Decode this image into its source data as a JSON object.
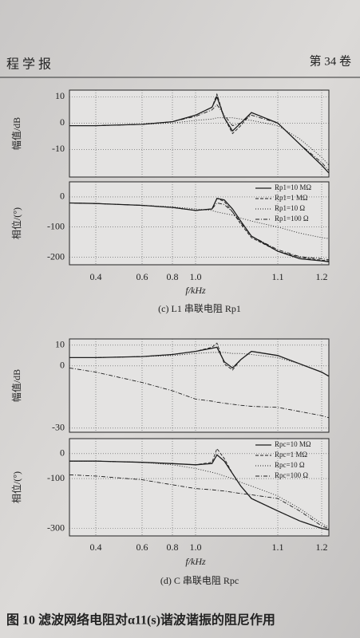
{
  "header": {
    "left": "程 学 报",
    "right": "第 34 卷"
  },
  "chart_data": [
    {
      "type": "line",
      "ylabel": "幅值/dB",
      "grid": true,
      "x": [
        0.32,
        0.4,
        0.6,
        0.8,
        1.0,
        1.02,
        1.026,
        1.035,
        1.045,
        1.055,
        1.068,
        1.1,
        1.15,
        1.2,
        1.22
      ],
      "xlim": [
        0.32,
        1.22
      ],
      "xticks": [
        0.4,
        0.6,
        0.8,
        {
          "value": 1,
          "label": "1.0"
        },
        1.1,
        1.2
      ],
      "ylim": [
        -20.5,
        12.5
      ],
      "yticks": [
        10,
        0,
        -10
      ],
      "series": [
        {
          "style": "solid",
          "color": "#1e1e1e",
          "values": [
            -1,
            -1,
            -0.5,
            0.5,
            3,
            6,
            10,
            2,
            -3,
            0,
            4,
            0,
            -8,
            -16,
            -19
          ]
        },
        {
          "style": "dashed",
          "color": "#1e1e1e",
          "values": [
            -1,
            -1,
            -0.5,
            0.5,
            3,
            6,
            11,
            2,
            -4,
            -1,
            4,
            0,
            -8,
            -16,
            -19
          ]
        },
        {
          "style": "dotted",
          "color": "#1e1e1e",
          "values": [
            -1,
            -1,
            -0.5,
            0,
            1,
            1.5,
            2,
            2,
            2,
            1.5,
            1,
            -1,
            -6,
            -13,
            -16
          ]
        },
        {
          "style": "dashdot",
          "color": "#1e1e1e",
          "values": [
            -1,
            -1,
            -0.5,
            0.5,
            2.5,
            5,
            7,
            3,
            -1,
            0,
            3,
            0,
            -8,
            -15,
            -18
          ]
        }
      ]
    },
    {
      "type": "line",
      "ylabel": "相位/(°)",
      "xlabel": "f/kHz",
      "grid": true,
      "legend": "upper right",
      "x": [
        0.32,
        0.4,
        0.6,
        0.8,
        1.0,
        1.02,
        1.026,
        1.035,
        1.045,
        1.055,
        1.068,
        1.1,
        1.15,
        1.2,
        1.22
      ],
      "xlim": [
        0.32,
        1.22
      ],
      "xticks": [
        0.4,
        0.6,
        0.8,
        {
          "value": 1,
          "label": "1.0"
        },
        1.1,
        1.2
      ],
      "ylim": [
        -225,
        50
      ],
      "yticks": [
        0,
        -100,
        -200
      ],
      "series": [
        {
          "name": "Rp1=10 MΩ",
          "style": "solid",
          "color": "#1e1e1e",
          "values": [
            -20,
            -22,
            -28,
            -35,
            -45,
            -40,
            -5,
            -10,
            -40,
            -80,
            -130,
            -180,
            -205,
            -212,
            -215
          ]
        },
        {
          "name": "Rp1=1 MΩ",
          "style": "dashed",
          "color": "#1e1e1e",
          "values": [
            -20,
            -22,
            -28,
            -35,
            -45,
            -40,
            -5,
            -15,
            -50,
            -90,
            -135,
            -180,
            -200,
            -210,
            -212
          ]
        },
        {
          "name": "Rp1=10 Ω",
          "style": "dotted",
          "color": "#1e1e1e",
          "values": [
            -20,
            -22,
            -28,
            -33,
            -40,
            -45,
            -50,
            -55,
            -60,
            -70,
            -80,
            -100,
            -120,
            -135,
            -138
          ]
        },
        {
          "name": "Rp1=100 Ω",
          "style": "dashdot",
          "color": "#1e1e1e",
          "values": [
            -20,
            -22,
            -28,
            -35,
            -45,
            -40,
            -20,
            -25,
            -50,
            -85,
            -130,
            -175,
            -198,
            -205,
            -208
          ]
        }
      ]
    },
    {
      "type": "line",
      "ylabel": "幅值/dB",
      "grid": true,
      "x": [
        0.32,
        0.4,
        0.6,
        0.8,
        1.0,
        1.02,
        1.026,
        1.035,
        1.045,
        1.055,
        1.068,
        1.1,
        1.15,
        1.2,
        1.22
      ],
      "xlim": [
        0.32,
        1.22
      ],
      "xticks": [
        0.4,
        0.6,
        0.8,
        {
          "value": 1,
          "label": "1.0"
        },
        1.1,
        1.2
      ],
      "ylim": [
        -32,
        13
      ],
      "yticks": [
        10,
        0,
        -30
      ],
      "series": [
        {
          "style": "solid",
          "color": "#1e1e1e",
          "values": [
            4,
            4,
            4.5,
            5.5,
            7,
            8.5,
            9,
            2,
            -1,
            3,
            7,
            5,
            1,
            -3,
            -5
          ]
        },
        {
          "style": "dashed",
          "color": "#1e1e1e",
          "values": [
            4,
            4,
            4.5,
            5.5,
            7,
            9,
            11,
            1,
            -2,
            3,
            7,
            5,
            1,
            -3,
            -5
          ]
        },
        {
          "style": "dotted",
          "color": "#1e1e1e",
          "values": [
            4,
            4,
            4.5,
            5,
            6,
            6.5,
            6.5,
            6.5,
            6,
            6,
            5.5,
            4,
            1,
            -3,
            -5
          ]
        },
        {
          "style": "dashdot",
          "color": "#1e1e1e",
          "values": [
            -1,
            -3,
            -8,
            -12,
            -16,
            -17,
            -17.5,
            -18,
            -18.5,
            -19,
            -19.5,
            -20,
            -22,
            -24,
            -25
          ]
        }
      ]
    },
    {
      "type": "line",
      "ylabel": "相位/(°)",
      "xlabel": "f/kHz",
      "grid": true,
      "legend": "upper right",
      "x": [
        0.32,
        0.4,
        0.6,
        0.8,
        1.0,
        1.02,
        1.026,
        1.035,
        1.045,
        1.055,
        1.068,
        1.1,
        1.15,
        1.2,
        1.22
      ],
      "xlim": [
        0.32,
        1.22
      ],
      "xticks": [
        0.4,
        0.6,
        0.8,
        {
          "value": 1,
          "label": "1.0"
        },
        1.1,
        1.2
      ],
      "ylim": [
        -330,
        60
      ],
      "yticks": [
        0,
        -100,
        -300
      ],
      "series": [
        {
          "name": "Rpc=10 MΩ",
          "style": "solid",
          "color": "#1e1e1e",
          "values": [
            -30,
            -30,
            -35,
            -40,
            -45,
            -40,
            -5,
            -30,
            -80,
            -130,
            -180,
            -230,
            -270,
            -300,
            -305
          ]
        },
        {
          "name": "Rpc=1 MΩ",
          "style": "dashed",
          "color": "#1e1e1e",
          "values": [
            -30,
            -30,
            -35,
            -40,
            -45,
            -35,
            20,
            -20,
            -80,
            -130,
            -180,
            -230,
            -270,
            -300,
            -305
          ]
        },
        {
          "name": "Rpc=10 Ω",
          "style": "dotted",
          "color": "#1e1e1e",
          "values": [
            -30,
            -30,
            -35,
            -45,
            -60,
            -75,
            -80,
            -90,
            -100,
            -115,
            -130,
            -170,
            -220,
            -280,
            -295
          ]
        },
        {
          "name": "Rpc=100 Ω",
          "style": "dashdot",
          "color": "#1e1e1e",
          "values": [
            -85,
            -90,
            -105,
            -125,
            -140,
            -145,
            -147,
            -150,
            -155,
            -160,
            -165,
            -180,
            -230,
            -290,
            -300
          ]
        }
      ]
    }
  ],
  "figure_captions": [
    "(c) L1 串联电阻 Rp1",
    "(d) C 串联电阻 Rpc"
  ],
  "caption": "图 10  滤波网络电阻对α11(s)谐波谐振的阻尼作用"
}
